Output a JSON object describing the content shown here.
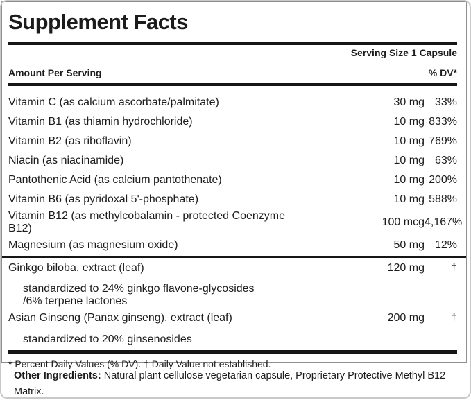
{
  "panel": {
    "title": "Supplement Facts",
    "serving_size": "Serving Size 1 Capsule",
    "header": {
      "amount_per_serving": "Amount Per Serving",
      "dv": "% DV*"
    },
    "nutrients": [
      {
        "label": "Vitamin C (as calcium ascorbate/palmitate)",
        "amount": "30 mg",
        "dv": "33%"
      },
      {
        "label": "Vitamin B1 (as thiamin hydrochloride)",
        "amount": "10 mg",
        "dv": "833%"
      },
      {
        "label": "Vitamin B2 (as riboflavin)",
        "amount": "10 mg",
        "dv": "769%"
      },
      {
        "label": "Niacin (as niacinamide)",
        "amount": "10 mg",
        "dv": "63%"
      },
      {
        "label": "Pantothenic Acid (as calcium pantothenate)",
        "amount": "10 mg",
        "dv": "200%"
      },
      {
        "label": "Vitamin B6 (as pyridoxal 5'-phosphate)",
        "amount": "10 mg",
        "dv": "588%"
      },
      {
        "label": "Vitamin B12 (as methylcobalamin - protected Coenzyme\nB12)",
        "amount": "100 mcg",
        "dv": "4,167%"
      },
      {
        "label": "Magnesium (as magnesium oxide)",
        "amount": "50 mg",
        "dv": "12%"
      }
    ],
    "botanicals": [
      {
        "label": "Ginkgo biloba, extract (leaf)",
        "amount": "120 mg",
        "dv": "†",
        "sub": "standardized to 24% ginkgo flavone-glycosides\n/6% terpene lactones"
      },
      {
        "label": "Asian Ginseng (Panax ginseng), extract (leaf)",
        "amount": "200 mg",
        "dv": "†",
        "sub": "standardized to 20% ginsenosides"
      }
    ],
    "footnote": "* Percent Daily Values (% DV). † Daily Value not established."
  },
  "other_ingredients": {
    "label": "Other Ingredients:",
    "text": " Natural plant cellulose vegetarian capsule, Proprietary Protective Methyl B12 Matrix."
  },
  "colors": {
    "text": "#1c1c1c",
    "bar": "#161616",
    "panel_border": "#8f8f8f",
    "outer_border": "#c9c9c9"
  }
}
